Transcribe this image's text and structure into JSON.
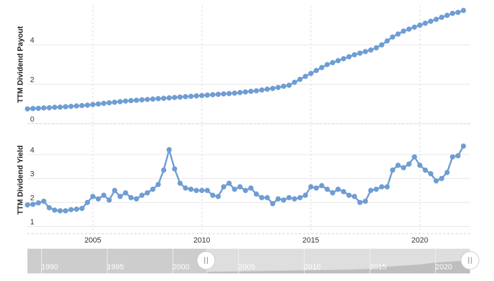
{
  "chart_data": {
    "type": "line",
    "ylabel": "TTM Dividend Payout",
    "y2label": "TTM Dividend Yield",
    "x": [
      2002,
      2002.25,
      2002.5,
      2002.75,
      2003,
      2003.25,
      2003.5,
      2003.75,
      2004,
      2004.25,
      2004.5,
      2004.75,
      2005,
      2005.25,
      2005.5,
      2005.75,
      2006,
      2006.25,
      2006.5,
      2006.75,
      2007,
      2007.25,
      2007.5,
      2007.75,
      2008,
      2008.25,
      2008.5,
      2008.75,
      2009,
      2009.25,
      2009.5,
      2009.75,
      2010,
      2010.25,
      2010.5,
      2010.75,
      2011,
      2011.25,
      2011.5,
      2011.75,
      2012,
      2012.25,
      2012.5,
      2012.75,
      2013,
      2013.25,
      2013.5,
      2013.75,
      2014,
      2014.25,
      2014.5,
      2014.75,
      2015,
      2015.25,
      2015.5,
      2015.75,
      2016,
      2016.25,
      2016.5,
      2016.75,
      2017,
      2017.25,
      2017.5,
      2017.75,
      2018,
      2018.25,
      2018.5,
      2018.75,
      2019,
      2019.25,
      2019.5,
      2019.75,
      2020,
      2020.25,
      2020.5,
      2020.75,
      2021,
      2021.25,
      2021.5,
      2021.75,
      2022
    ],
    "series": [
      {
        "name": "TTM Dividend Payout",
        "color": "#6f9dd3",
        "values": [
          0.75,
          0.77,
          0.78,
          0.8,
          0.81,
          0.83,
          0.84,
          0.86,
          0.88,
          0.9,
          0.92,
          0.94,
          0.97,
          1.0,
          1.03,
          1.06,
          1.09,
          1.12,
          1.15,
          1.17,
          1.19,
          1.21,
          1.23,
          1.25,
          1.27,
          1.29,
          1.31,
          1.33,
          1.35,
          1.37,
          1.39,
          1.41,
          1.43,
          1.45,
          1.47,
          1.49,
          1.51,
          1.53,
          1.55,
          1.58,
          1.61,
          1.64,
          1.67,
          1.71,
          1.75,
          1.79,
          1.84,
          1.9,
          1.95,
          2.1,
          2.25,
          2.4,
          2.55,
          2.7,
          2.85,
          3.0,
          3.1,
          3.2,
          3.3,
          3.4,
          3.5,
          3.58,
          3.66,
          3.74,
          3.85,
          4.0,
          4.2,
          4.4,
          4.55,
          4.7,
          4.8,
          4.9,
          5.0,
          5.1,
          5.2,
          5.3,
          5.4,
          5.5,
          5.6,
          5.65,
          5.75
        ]
      },
      {
        "name": "TTM Dividend Yield",
        "color": "#6f9dd3",
        "axis": "y2",
        "values": [
          1.9,
          1.92,
          1.98,
          2.05,
          1.78,
          1.68,
          1.65,
          1.65,
          1.7,
          1.72,
          1.75,
          2.0,
          2.25,
          2.15,
          2.3,
          2.1,
          2.5,
          2.25,
          2.4,
          2.2,
          2.15,
          2.3,
          2.4,
          2.55,
          2.75,
          3.35,
          4.2,
          3.4,
          2.8,
          2.6,
          2.55,
          2.5,
          2.5,
          2.5,
          2.3,
          2.25,
          2.65,
          2.8,
          2.55,
          2.65,
          2.5,
          2.6,
          2.35,
          2.2,
          2.2,
          1.95,
          2.15,
          2.1,
          2.2,
          2.15,
          2.2,
          2.3,
          2.65,
          2.6,
          2.7,
          2.55,
          2.4,
          2.55,
          2.45,
          2.3,
          2.25,
          2.0,
          2.05,
          2.5,
          2.55,
          2.65,
          2.65,
          3.35,
          3.55,
          3.45,
          3.6,
          3.9,
          3.55,
          3.35,
          3.2,
          2.9,
          3.0,
          3.25,
          3.9,
          3.95,
          4.35
        ]
      }
    ],
    "xlim": [
      2002,
      2022.3
    ],
    "xticks": [
      2005,
      2010,
      2015,
      2020
    ],
    "ylim": [
      0,
      6
    ],
    "yticks": [
      0,
      2,
      4
    ],
    "y2lim": [
      0.7,
      5
    ],
    "y2ticks": [
      1,
      2,
      3,
      4
    ],
    "grid": true,
    "navigator": {
      "xlim": [
        1988.3,
        2022
      ],
      "xticks": [
        1990,
        1995,
        2000,
        2005,
        2010,
        2015,
        2020
      ],
      "selected": [
        2001.9,
        2022
      ]
    }
  }
}
